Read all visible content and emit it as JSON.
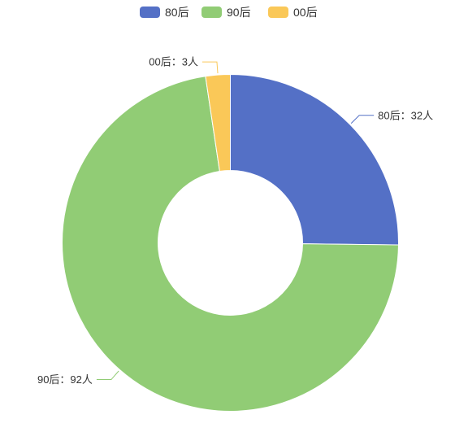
{
  "chart_data": {
    "type": "pie",
    "variant": "donut",
    "categories": [
      "80后",
      "90后",
      "00后"
    ],
    "values": [
      32,
      92,
      3
    ],
    "unit": "人",
    "separator": "：",
    "colors": [
      "#5470c6",
      "#91cc75",
      "#fac858"
    ],
    "legend": {
      "placement": "top-center",
      "items": [
        "80后",
        "90后",
        "00后"
      ]
    },
    "slice_labels": [
      "80后：32人",
      "90后：92人",
      "00后：3人"
    ]
  }
}
